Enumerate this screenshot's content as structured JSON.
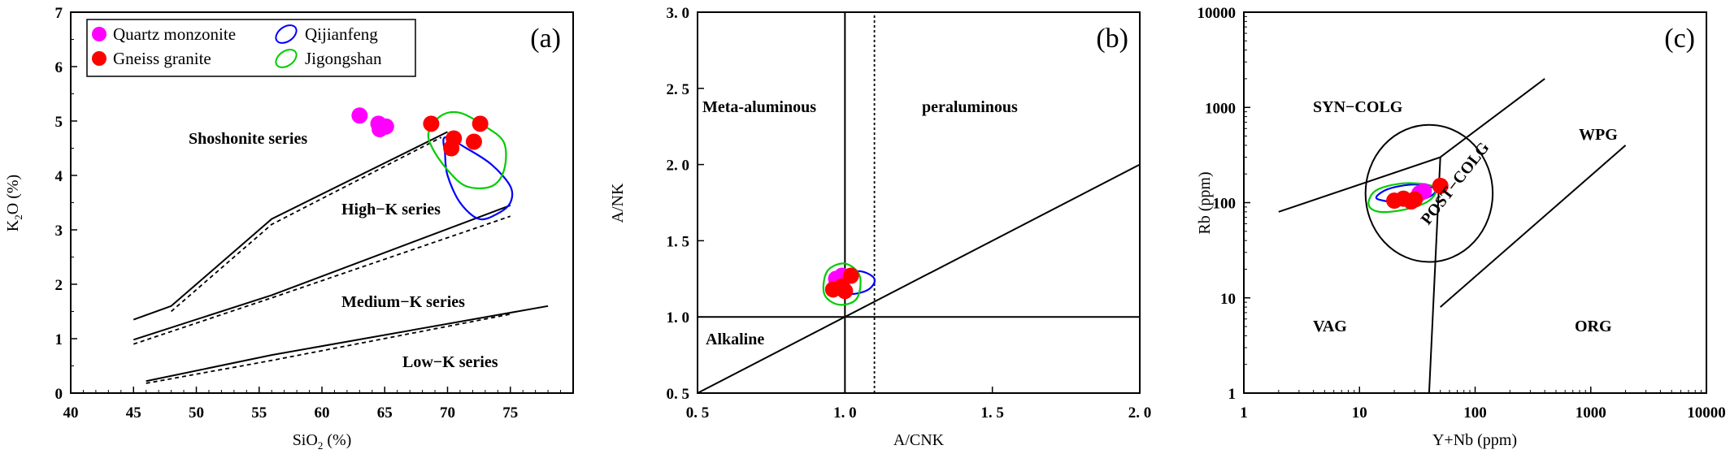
{
  "legend": {
    "items": [
      {
        "label": "Quartz monzonite",
        "color": "#ff00ff",
        "symbol": "dot"
      },
      {
        "label": "Gneiss granite",
        "color": "#ff0000",
        "symbol": "dot"
      },
      {
        "label": "Qijianfeng",
        "color": "#0000ff",
        "symbol": "ellipse"
      },
      {
        "label": "Jigongshan",
        "color": "#00cc00",
        "symbol": "ellipse"
      }
    ]
  },
  "chart_data": [
    {
      "type": "scatter",
      "panel_label": "(a)",
      "xlabel": "SiO",
      "xlabel_sub": "2",
      "xlabel_unit": " (%)",
      "ylabel": "K",
      "ylabel_sub": "2",
      "ylabel_rest": "O (%)",
      "xlim": [
        40,
        80
      ],
      "ylim": [
        0,
        7
      ],
      "xticks": [
        40,
        45,
        50,
        55,
        60,
        65,
        70,
        75
      ],
      "yticks": [
        0,
        1,
        2,
        3,
        4,
        5,
        6,
        7
      ],
      "series": [
        {
          "name": "Quartz monzonite",
          "color": "#ff00ff",
          "points": [
            [
              63,
              5.1
            ],
            [
              64.5,
              4.95
            ],
            [
              64.6,
              4.85
            ],
            [
              65.1,
              4.9
            ]
          ]
        },
        {
          "name": "Gneiss granite",
          "color": "#ff0000",
          "points": [
            [
              68.7,
              4.95
            ],
            [
              70.5,
              4.68
            ],
            [
              70.3,
              4.5
            ],
            [
              72.1,
              4.62
            ],
            [
              72.6,
              4.95
            ]
          ]
        }
      ],
      "outlines": [
        {
          "name": "Qijianfeng",
          "color": "#0000ff",
          "points": [
            [
              69.8,
              4.7
            ],
            [
              71.5,
              4.5
            ],
            [
              73.5,
              4.2
            ],
            [
              75,
              3.8
            ],
            [
              75,
              3.5
            ],
            [
              74,
              3.3
            ],
            [
              72.5,
              3.2
            ],
            [
              71,
              3.5
            ],
            [
              70,
              4.0
            ],
            [
              69.8,
              4.4
            ]
          ]
        },
        {
          "name": "Jigongshan",
          "color": "#00cc00",
          "points": [
            [
              68.5,
              4.8
            ],
            [
              69.5,
              5.1
            ],
            [
              71,
              5.15
            ],
            [
              73,
              4.9
            ],
            [
              74.5,
              4.6
            ],
            [
              74.5,
              4.1
            ],
            [
              73.5,
              3.8
            ],
            [
              71.5,
              3.8
            ],
            [
              70,
              4.1
            ],
            [
              68.8,
              4.5
            ]
          ]
        }
      ],
      "boundaries_solid": [
        [
          [
            45,
            1.35
          ],
          [
            48,
            1.6
          ],
          [
            56,
            3.2
          ],
          [
            70,
            4.8
          ]
        ],
        [
          [
            45,
            0.98
          ],
          [
            56,
            1.8
          ],
          [
            75,
            3.45
          ]
        ],
        [
          [
            46,
            0.22
          ],
          [
            56,
            0.7
          ],
          [
            78,
            1.6
          ]
        ]
      ],
      "boundaries_dashed": [
        [
          [
            48,
            1.5
          ],
          [
            56,
            3.1
          ],
          [
            69.5,
            4.7
          ]
        ],
        [
          [
            45,
            0.9
          ],
          [
            56,
            1.75
          ],
          [
            75,
            3.25
          ]
        ],
        [
          [
            46,
            0.18
          ],
          [
            56,
            0.6
          ],
          [
            75,
            1.45
          ]
        ]
      ],
      "annotations": [
        "Shoshonite  series",
        "High−K  series",
        "Medium−K series",
        "Low−K series"
      ]
    },
    {
      "type": "scatter",
      "panel_label": "(b)",
      "xlabel": "A/CNK",
      "ylabel": "A/NK",
      "xlim": [
        0.5,
        2.0
      ],
      "ylim": [
        0.5,
        3.0
      ],
      "xticks": [
        0.5,
        1.0,
        1.5,
        2.0
      ],
      "xtick_labels": [
        "0. 5",
        "1. 0",
        "1. 5",
        "2. 0"
      ],
      "yticks": [
        0.5,
        1.0,
        1.5,
        2.0,
        2.5,
        3.0
      ],
      "ytick_labels": [
        "0. 5",
        "1. 0",
        "1. 5",
        "2. 0",
        "2. 5",
        "3. 0"
      ],
      "series": [
        {
          "name": "Quartz monzonite",
          "color": "#ff00ff",
          "points": [
            [
              0.97,
              1.25
            ],
            [
              0.99,
              1.27
            ]
          ]
        },
        {
          "name": "Gneiss granite",
          "color": "#ff0000",
          "points": [
            [
              0.96,
              1.18
            ],
            [
              0.99,
              1.2
            ],
            [
              1.0,
              1.17
            ],
            [
              1.02,
              1.27
            ]
          ]
        }
      ],
      "outlines": [
        {
          "name": "Qijianfeng",
          "color": "#0000ff",
          "points": [
            [
              0.97,
              1.27
            ],
            [
              1.05,
              1.3
            ],
            [
              1.1,
              1.25
            ],
            [
              1.08,
              1.18
            ],
            [
              1.02,
              1.15
            ],
            [
              0.97,
              1.18
            ]
          ]
        },
        {
          "name": "Jigongshan",
          "color": "#00cc00",
          "points": [
            [
              0.94,
              1.3
            ],
            [
              1.0,
              1.35
            ],
            [
              1.05,
              1.27
            ],
            [
              1.04,
              1.12
            ],
            [
              0.98,
              1.08
            ],
            [
              0.93,
              1.15
            ]
          ]
        }
      ],
      "lines": [
        [
          [
            1.0,
            0.5
          ],
          [
            1.0,
            3.0
          ]
        ],
        [
          [
            0.5,
            1.0
          ],
          [
            2.0,
            1.0
          ]
        ],
        [
          [
            0.5,
            0.5
          ],
          [
            2.0,
            2.0
          ]
        ]
      ],
      "dashed_lines": [
        [
          [
            1.1,
            0.5
          ],
          [
            1.1,
            3.0
          ]
        ]
      ],
      "annotations": [
        "Meta-aluminous",
        "peraluminous",
        "Alkaline"
      ]
    },
    {
      "type": "scatter",
      "panel_label": "(c)",
      "xlabel": "Y+Nb (ppm)",
      "ylabel": "Rb (ppm)",
      "x_scale": "log",
      "y_scale": "log",
      "xlim": [
        1,
        10000
      ],
      "ylim": [
        1,
        10000
      ],
      "xticks": [
        1,
        10,
        100,
        1000,
        10000
      ],
      "yticks": [
        1,
        10,
        100,
        1000,
        10000
      ],
      "series": [
        {
          "name": "Quartz monzonite",
          "color": "#ff00ff",
          "points": [
            [
              33,
              125
            ],
            [
              36,
              132
            ]
          ]
        },
        {
          "name": "Gneiss granite",
          "color": "#ff0000",
          "points": [
            [
              20,
              105
            ],
            [
              24,
              110
            ],
            [
              28,
              103
            ],
            [
              30,
              108
            ],
            [
              50,
              150
            ]
          ]
        }
      ],
      "outlines": [
        {
          "name": "Qijianfeng",
          "color": "#0000ff",
          "points": [
            [
              14,
              115
            ],
            [
              18,
              140
            ],
            [
              30,
              155
            ],
            [
              45,
              140
            ],
            [
              40,
              115
            ],
            [
              25,
              100
            ],
            [
              16,
              105
            ]
          ]
        },
        {
          "name": "Jigongshan",
          "color": "#00cc00",
          "points": [
            [
              12,
              95
            ],
            [
              14,
              135
            ],
            [
              25,
              160
            ],
            [
              45,
              145
            ],
            [
              40,
              105
            ],
            [
              25,
              85
            ],
            [
              15,
              80
            ]
          ]
        }
      ],
      "lines": [
        [
          [
            2,
            80
          ],
          [
            50,
            300
          ],
          [
            400,
            2000
          ]
        ],
        [
          [
            50,
            300
          ],
          [
            40,
            1
          ],
          [
            50,
            300
          ]
        ],
        [
          [
            50,
            8
          ],
          [
            2000,
            400
          ]
        ]
      ],
      "circle": {
        "center": [
          40,
          125
        ],
        "rx_log": 0.55,
        "ry_log": 0.72
      },
      "annotations": [
        "SYN−COLG",
        "WPG",
        "POST−COLG",
        "VAG",
        "ORG"
      ]
    }
  ]
}
